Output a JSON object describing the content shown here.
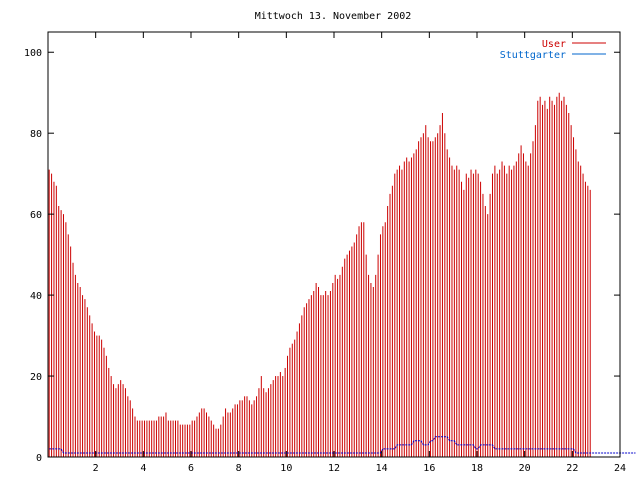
{
  "chart_data": {
    "type": "bar",
    "title": "Mittwoch 13. November 2002",
    "xlabel": "",
    "ylabel": "",
    "xlim": [
      0,
      24
    ],
    "ylim": [
      0,
      105
    ],
    "x_ticks": [
      2,
      4,
      6,
      8,
      10,
      12,
      14,
      16,
      18,
      20,
      22,
      24
    ],
    "y_ticks": [
      0,
      20,
      40,
      60,
      80,
      100
    ],
    "legend_position": "top-right",
    "grid": false,
    "interval_hours": 0.1,
    "series": [
      {
        "name": "User",
        "color": "#cc0000",
        "style": "impulses",
        "values": [
          71,
          70,
          68,
          67,
          62,
          61,
          60,
          58,
          55,
          52,
          48,
          45,
          43,
          42,
          40,
          39,
          37,
          35,
          33,
          31,
          30,
          30,
          29,
          27,
          25,
          22,
          20,
          18,
          17,
          18,
          19,
          18,
          17,
          15,
          14,
          12,
          10,
          9,
          9,
          9,
          9,
          9,
          9,
          9,
          9,
          9,
          10,
          10,
          10,
          11,
          9,
          9,
          9,
          9,
          9,
          8,
          8,
          8,
          8,
          8,
          9,
          9,
          10,
          11,
          12,
          12,
          11,
          10,
          9,
          8,
          7,
          7,
          8,
          10,
          12,
          11,
          11,
          12,
          13,
          13,
          14,
          14,
          15,
          15,
          14,
          13,
          14,
          15,
          17,
          20,
          17,
          16,
          17,
          18,
          19,
          20,
          20,
          21,
          20,
          22,
          25,
          27,
          28,
          29,
          31,
          33,
          35,
          37,
          38,
          39,
          40,
          41,
          43,
          42,
          40,
          40,
          41,
          40,
          41,
          43,
          45,
          44,
          45,
          47,
          49,
          50,
          51,
          52,
          53,
          55,
          57,
          58,
          58,
          50,
          45,
          43,
          42,
          45,
          50,
          55,
          57,
          58,
          62,
          65,
          67,
          70,
          71,
          72,
          71,
          73,
          74,
          73,
          74,
          75,
          76,
          78,
          79,
          80,
          82,
          79,
          78,
          78,
          79,
          80,
          82,
          85,
          80,
          76,
          74,
          72,
          71,
          72,
          71,
          68,
          66,
          70,
          69,
          71,
          70,
          71,
          70,
          68,
          65,
          62,
          60,
          65,
          70,
          72,
          70,
          71,
          73,
          72,
          70,
          72,
          71,
          72,
          73,
          75,
          77,
          75,
          73,
          72,
          75,
          78,
          82,
          88,
          89,
          87,
          88,
          86,
          89,
          88,
          87,
          89,
          90,
          88,
          89,
          87,
          85,
          82,
          79,
          76,
          73,
          72,
          70,
          68,
          67,
          66
        ]
      },
      {
        "name": "Stuttgarter",
        "color": "#0066cc",
        "style": "lines",
        "values": [
          2,
          2,
          2,
          2,
          2,
          2,
          1,
          1,
          1,
          1,
          1,
          1,
          1,
          1,
          1,
          1,
          1,
          1,
          1,
          1,
          1,
          1,
          1,
          1,
          1,
          1,
          1,
          1,
          1,
          1,
          1,
          1,
          1,
          1,
          1,
          1,
          1,
          1,
          1,
          1,
          1,
          1,
          1,
          1,
          1,
          1,
          1,
          1,
          1,
          1,
          1,
          1,
          1,
          1,
          1,
          1,
          1,
          1,
          1,
          1,
          1,
          1,
          1,
          1,
          1,
          1,
          1,
          1,
          1,
          1,
          1,
          1,
          1,
          1,
          1,
          1,
          1,
          1,
          1,
          1,
          1,
          1,
          1,
          1,
          1,
          1,
          1,
          1,
          1,
          1,
          1,
          1,
          1,
          1,
          1,
          1,
          1,
          1,
          1,
          1,
          1,
          1,
          1,
          1,
          1,
          1,
          1,
          1,
          1,
          1,
          1,
          1,
          1,
          1,
          1,
          1,
          1,
          1,
          1,
          1,
          1,
          1,
          1,
          1,
          1,
          1,
          1,
          1,
          1,
          1,
          1,
          1,
          1,
          1,
          1,
          1,
          1,
          1,
          1,
          1,
          2,
          2,
          2,
          2,
          2,
          2,
          3,
          3,
          3,
          3,
          3,
          3,
          3,
          4,
          4,
          4,
          4,
          3,
          3,
          3,
          4,
          4,
          5,
          5,
          5,
          5,
          5,
          5,
          4,
          4,
          4,
          3,
          3,
          3,
          3,
          3,
          3,
          3,
          3,
          2,
          2,
          3,
          3,
          3,
          3,
          3,
          3,
          2,
          2,
          2,
          2,
          2,
          2,
          2,
          2,
          2,
          2,
          2,
          2,
          2,
          2,
          2,
          2,
          2,
          2,
          2,
          2,
          2,
          2,
          2,
          2,
          2,
          2,
          2,
          2,
          2,
          2,
          2,
          2,
          2,
          2,
          1,
          1,
          1,
          1,
          1,
          1,
          1,
          1,
          1,
          1,
          1,
          1,
          1,
          1,
          1,
          1,
          1,
          1,
          1,
          1,
          1,
          1,
          1,
          1,
          1,
          1
        ]
      }
    ]
  }
}
